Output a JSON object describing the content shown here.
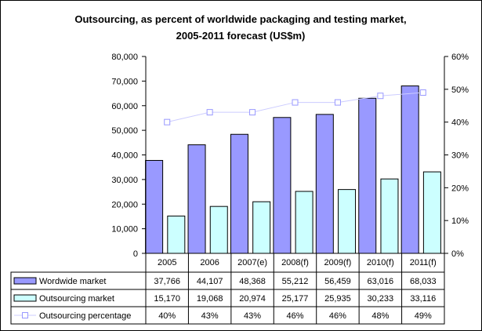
{
  "chart_data": {
    "type": "bar",
    "title": "Outsourcing, as percent of worldwide packaging and testing market,",
    "subtitle": "2005-2011 forecast (US$m)",
    "categories": [
      "2005",
      "2006",
      "2007(e)",
      "2008(f)",
      "2009(f)",
      "2010(f)",
      "2011(f)"
    ],
    "series": [
      {
        "name": "Wordwide market",
        "kind": "bar",
        "axis": "left",
        "color": "#9999ff",
        "values": [
          37766,
          44107,
          48368,
          55212,
          56459,
          63016,
          68033
        ],
        "labels": [
          "37,766",
          "44,107",
          "48,368",
          "55,212",
          "56,459",
          "63,016",
          "68,033"
        ]
      },
      {
        "name": "Outsourcing market",
        "kind": "bar",
        "axis": "left",
        "color": "#ccffff",
        "values": [
          15170,
          19068,
          20974,
          25177,
          25935,
          30233,
          33116
        ],
        "labels": [
          "15,170",
          "19,068",
          "20,974",
          "25,177",
          "25,935",
          "30,233",
          "33,116"
        ]
      },
      {
        "name": "Outsourcing percentage",
        "kind": "line",
        "axis": "right",
        "color": "#ccccff",
        "values": [
          40,
          43,
          43,
          46,
          46,
          48,
          49
        ],
        "labels": [
          "40%",
          "43%",
          "43%",
          "46%",
          "46%",
          "48%",
          "49%"
        ]
      }
    ],
    "ylim": [
      0,
      80000
    ],
    "yticks": [
      "0",
      "10,000",
      "20,000",
      "30,000",
      "40,000",
      "50,000",
      "60,000",
      "70,000",
      "80,000"
    ],
    "y2lim": [
      0,
      60
    ],
    "y2ticks": [
      "0%",
      "10%",
      "20%",
      "30%",
      "40%",
      "50%",
      "60%"
    ],
    "grid": false,
    "legend": "data-table"
  }
}
